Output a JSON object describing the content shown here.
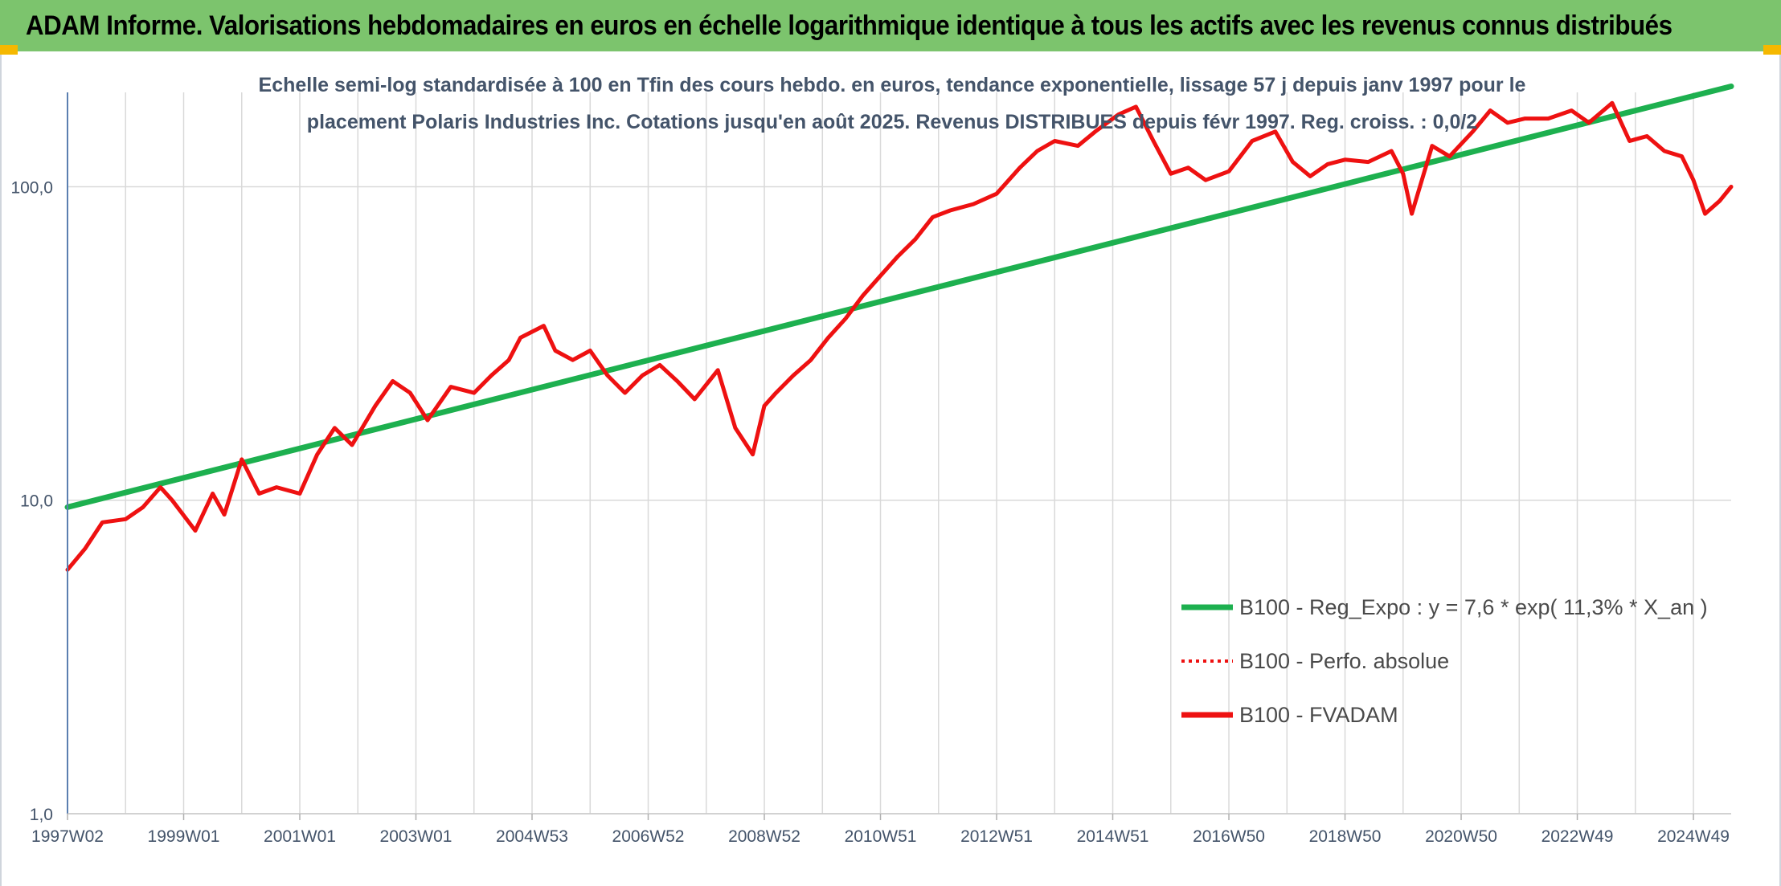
{
  "banner": {
    "title": "ADAM Informe. Valorisations hebdomadaires en euros en échelle logarithmique identique à tous les actifs avec les revenus connus distribués"
  },
  "colors": {
    "banner_bg": "#7cc46d",
    "corner_accent": "#f5b800",
    "trend_green": "#1db04f",
    "price_red": "#ee1111",
    "grid": "#d9d9d9",
    "axis": "#5b7fb0",
    "text": "#44546a"
  },
  "chart_data": {
    "type": "line",
    "title_line1": "Echelle semi-log standardisée à 100 en Tfin des cours hebdo. en euros, tendance exponentielle, lissage 57 j depuis janv 1997 pour le",
    "title_line2": "placement Polaris Industries Inc. Cotations jusqu'en août 2025. Revenus DISTRIBUES depuis févr 1997. Reg. croiss. : 0,0/2",
    "y_scale": "log",
    "ylim": [
      1,
      200
    ],
    "y_ticks": [
      {
        "value": 1,
        "label": "1,0"
      },
      {
        "value": 10,
        "label": "10,0"
      },
      {
        "value": 100,
        "label": "100,0"
      }
    ],
    "xlim": [
      1997.0,
      2025.65
    ],
    "x_ticks": [
      {
        "label": "1997W02",
        "year": 1997.0
      },
      {
        "label": "1999W01",
        "year": 1999.0
      },
      {
        "label": "2001W01",
        "year": 2001.0
      },
      {
        "label": "2003W01",
        "year": 2003.0
      },
      {
        "label": "2004W53",
        "year": 2005.0
      },
      {
        "label": "2006W52",
        "year": 2007.0
      },
      {
        "label": "2008W52",
        "year": 2009.0
      },
      {
        "label": "2010W51",
        "year": 2011.0
      },
      {
        "label": "2012W51",
        "year": 2013.0
      },
      {
        "label": "2014W51",
        "year": 2015.0
      },
      {
        "label": "2016W50",
        "year": 2017.0
      },
      {
        "label": "2018W50",
        "year": 2019.0
      },
      {
        "label": "2020W50",
        "year": 2021.0
      },
      {
        "label": "2022W49",
        "year": 2023.0
      },
      {
        "label": "2024W49",
        "year": 2025.0
      }
    ],
    "grid": true,
    "legend_position": "bottom-right",
    "series": [
      {
        "name": "B100 - Reg_Expo : y = 7,6 * exp( 11,3% *  X_an )",
        "color": "#1db04f",
        "style": "solid",
        "x": [
          1997.0,
          2025.65
        ],
        "y": [
          9.5,
          209.0
        ]
      },
      {
        "name": "B100 - Perfo. absolue",
        "color": "#ee1111",
        "style": "dotted",
        "x": [],
        "y": []
      },
      {
        "name": "B100 - FVADAM",
        "color": "#ee1111",
        "style": "solid",
        "x": [
          1997.0,
          1997.3,
          1997.6,
          1998.0,
          1998.3,
          1998.6,
          1998.8,
          1999.2,
          1999.5,
          1999.7,
          2000.0,
          2000.3,
          2000.6,
          2001.0,
          2001.3,
          2001.6,
          2001.9,
          2002.3,
          2002.6,
          2002.9,
          2003.2,
          2003.6,
          2004.0,
          2004.3,
          2004.6,
          2004.8,
          2005.2,
          2005.4,
          2005.7,
          2006.0,
          2006.3,
          2006.6,
          2006.9,
          2007.2,
          2007.5,
          2007.8,
          2008.2,
          2008.5,
          2008.8,
          2009.0,
          2009.2,
          2009.5,
          2009.8,
          2010.1,
          2010.4,
          2010.7,
          2011.0,
          2011.3,
          2011.6,
          2011.9,
          2012.2,
          2012.6,
          2013.0,
          2013.4,
          2013.7,
          2014.0,
          2014.4,
          2014.7,
          2015.1,
          2015.4,
          2015.7,
          2016.0,
          2016.3,
          2016.6,
          2017.0,
          2017.4,
          2017.8,
          2018.1,
          2018.4,
          2018.7,
          2019.0,
          2019.4,
          2019.8,
          2020.0,
          2020.15,
          2020.5,
          2020.8,
          2021.2,
          2021.5,
          2021.8,
          2022.1,
          2022.5,
          2022.9,
          2023.2,
          2023.6,
          2023.9,
          2024.2,
          2024.5,
          2024.8,
          2025.0,
          2025.2,
          2025.45,
          2025.65
        ],
        "y": [
          6.0,
          7.0,
          8.5,
          8.7,
          9.5,
          11.0,
          10.0,
          8.0,
          10.5,
          9.0,
          13.5,
          10.5,
          11.0,
          10.5,
          14.0,
          17.0,
          15.0,
          20.0,
          24.0,
          22.0,
          18.0,
          23.0,
          22.0,
          25.0,
          28.0,
          33.0,
          36.0,
          30.0,
          28.0,
          30.0,
          25.0,
          22.0,
          25.0,
          27.0,
          24.0,
          21.0,
          26.0,
          17.0,
          14.0,
          20.0,
          22.0,
          25.0,
          28.0,
          33.0,
          38.0,
          45.0,
          52.0,
          60.0,
          68.0,
          80.0,
          84.0,
          88.0,
          95.0,
          115.0,
          130.0,
          140.0,
          135.0,
          150.0,
          170.0,
          180.0,
          140.0,
          110.0,
          115.0,
          105.0,
          112.0,
          140.0,
          150.0,
          120.0,
          108.0,
          118.0,
          122.0,
          120.0,
          130.0,
          110.0,
          82.0,
          135.0,
          125.0,
          150.0,
          175.0,
          160.0,
          165.0,
          165.0,
          175.0,
          160.0,
          185.0,
          140.0,
          145.0,
          130.0,
          125.0,
          105.0,
          82.0,
          90.0,
          100.0
        ]
      }
    ]
  }
}
